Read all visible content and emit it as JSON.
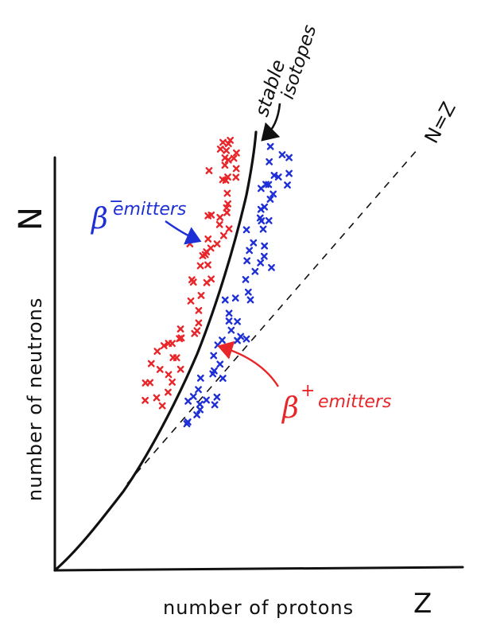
{
  "axes": {
    "y_label": "number of neutrons",
    "y_symbol": "N",
    "x_label": "number of protons",
    "x_symbol": "Z"
  },
  "curves": {
    "stable_label_line1": "stable",
    "stable_label_line2": "isotopes",
    "nz_label": "N=Z"
  },
  "beta_minus": {
    "symbol": "β",
    "sign": "−",
    "label": "emitters",
    "color": "#1f2fd6"
  },
  "beta_plus": {
    "symbol": "β",
    "sign": "+",
    "label": "emitters",
    "color": "#e8262a"
  },
  "ink_color": "#111111"
}
